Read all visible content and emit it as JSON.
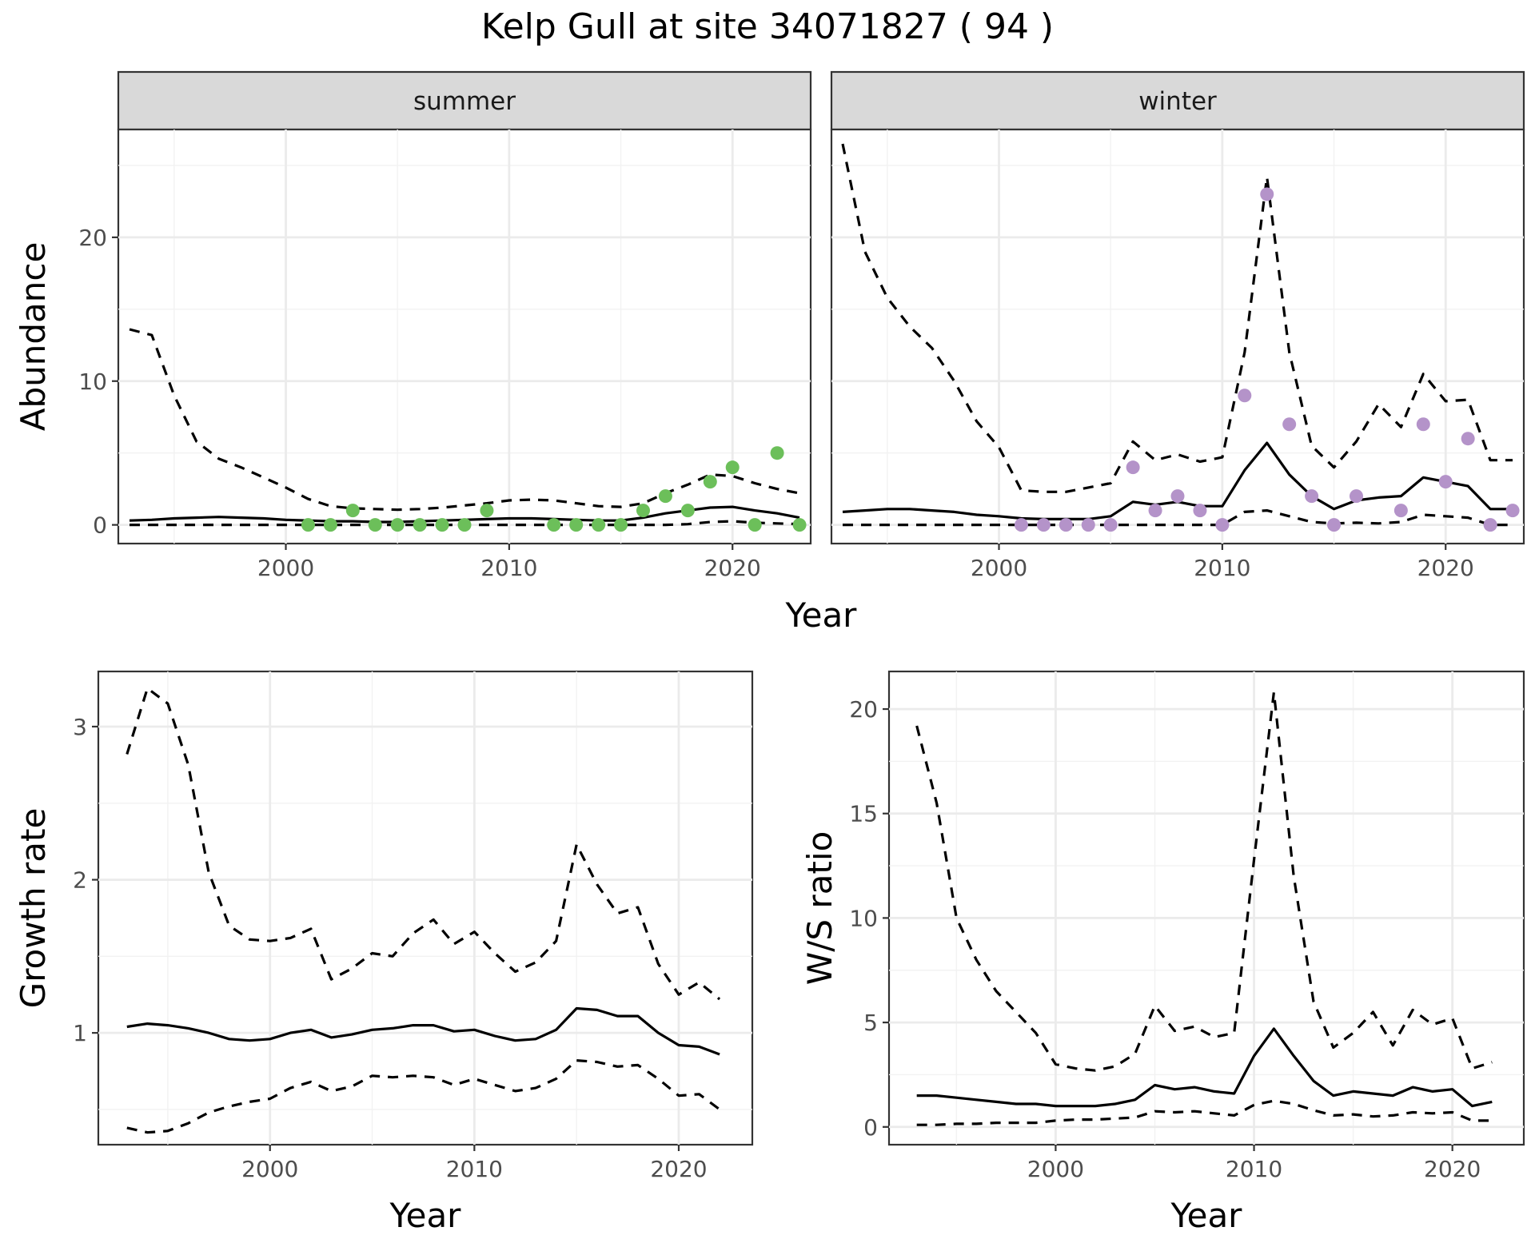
{
  "title": "Kelp Gull at site 34071827 ( 94 )",
  "colors": {
    "summer_points": "#6cbf5a",
    "winter_points": "#b493c9"
  },
  "chart_data": [
    {
      "type": "line",
      "facet": "summer",
      "xlabel": "Year",
      "ylabel": "Abundance",
      "xlim": [
        1992.5,
        2023.5
      ],
      "ylim": [
        -1.3,
        27.5
      ],
      "x_ticks": [
        2000,
        2010,
        2020
      ],
      "y_ticks": [
        0,
        10,
        20
      ],
      "grid": true,
      "lines": {
        "x": [
          1993,
          1994,
          1995,
          1996,
          1997,
          1998,
          1999,
          2000,
          2001,
          2002,
          2003,
          2004,
          2005,
          2006,
          2007,
          2008,
          2009,
          2010,
          2011,
          2012,
          2013,
          2014,
          2015,
          2016,
          2017,
          2018,
          2019,
          2020,
          2021,
          2022,
          2023
        ],
        "mean": [
          0.3,
          0.35,
          0.45,
          0.5,
          0.55,
          0.5,
          0.45,
          0.35,
          0.3,
          0.25,
          0.25,
          0.2,
          0.2,
          0.25,
          0.3,
          0.35,
          0.4,
          0.45,
          0.45,
          0.4,
          0.35,
          0.3,
          0.3,
          0.5,
          0.8,
          1.0,
          1.2,
          1.25,
          1.0,
          0.8,
          0.5
        ],
        "upper": [
          13.6,
          13.2,
          9.0,
          5.8,
          4.6,
          4.0,
          3.3,
          2.6,
          1.8,
          1.3,
          1.15,
          1.1,
          1.05,
          1.1,
          1.2,
          1.35,
          1.5,
          1.7,
          1.75,
          1.7,
          1.5,
          1.3,
          1.25,
          1.5,
          2.2,
          2.8,
          3.5,
          3.4,
          2.9,
          2.5,
          2.2
        ],
        "lower": [
          0.0,
          0.0,
          0.0,
          0.0,
          0.0,
          0.0,
          0.0,
          0.0,
          0.0,
          0.0,
          0.0,
          0.0,
          0.0,
          0.0,
          0.0,
          0.0,
          0.0,
          0.0,
          0.0,
          0.0,
          0.0,
          0.0,
          0.0,
          0.0,
          0.0,
          0.05,
          0.2,
          0.25,
          0.15,
          0.1,
          0.05
        ]
      },
      "points": {
        "x": [
          2001,
          2002,
          2003,
          2004,
          2005,
          2006,
          2007,
          2008,
          2009,
          2012,
          2013,
          2014,
          2015,
          2016,
          2017,
          2018,
          2019,
          2020,
          2021,
          2022,
          2023
        ],
        "y": [
          0,
          0,
          1,
          0,
          0,
          0,
          0,
          0,
          1,
          0,
          0,
          0,
          0,
          1,
          2,
          1,
          3,
          4,
          0,
          5,
          0
        ]
      }
    },
    {
      "type": "line",
      "facet": "winter",
      "xlabel": "Year",
      "ylabel": "Abundance",
      "xlim": [
        1992.5,
        2023.5
      ],
      "ylim": [
        -1.3,
        27.5
      ],
      "x_ticks": [
        2000,
        2010,
        2020
      ],
      "y_ticks": [
        0,
        10,
        20
      ],
      "grid": true,
      "lines": {
        "x": [
          1993,
          1994,
          1995,
          1996,
          1997,
          1998,
          1999,
          2000,
          2001,
          2002,
          2003,
          2004,
          2005,
          2006,
          2007,
          2008,
          2009,
          2010,
          2011,
          2012,
          2013,
          2014,
          2015,
          2016,
          2017,
          2018,
          2019,
          2020,
          2021,
          2022,
          2023
        ],
        "mean": [
          0.9,
          1.0,
          1.1,
          1.1,
          1.0,
          0.9,
          0.7,
          0.6,
          0.45,
          0.4,
          0.4,
          0.4,
          0.6,
          1.6,
          1.4,
          1.6,
          1.3,
          1.3,
          3.8,
          5.7,
          3.5,
          2.0,
          1.1,
          1.7,
          1.9,
          2.0,
          3.3,
          3.0,
          2.7,
          1.1,
          1.1
        ],
        "upper": [
          26.5,
          19.0,
          15.8,
          13.8,
          12.3,
          10.0,
          7.2,
          5.4,
          2.4,
          2.3,
          2.3,
          2.6,
          2.9,
          5.8,
          4.5,
          4.9,
          4.4,
          4.7,
          12.0,
          24.2,
          12.0,
          5.5,
          4.0,
          5.8,
          8.4,
          6.8,
          10.5,
          8.6,
          8.7,
          4.5,
          4.5
        ],
        "lower": [
          0.0,
          0.0,
          0.0,
          0.0,
          0.0,
          0.0,
          0.0,
          0.0,
          0.0,
          0.0,
          0.0,
          0.0,
          0.0,
          0.0,
          0.0,
          0.0,
          0.0,
          0.0,
          0.9,
          1.0,
          0.6,
          0.2,
          0.1,
          0.15,
          0.1,
          0.2,
          0.7,
          0.6,
          0.5,
          0.0,
          0.0
        ]
      },
      "points": {
        "x": [
          2001,
          2002,
          2003,
          2004,
          2005,
          2006,
          2007,
          2008,
          2009,
          2010,
          2011,
          2012,
          2013,
          2014,
          2015,
          2016,
          2018,
          2019,
          2020,
          2021,
          2022,
          2023
        ],
        "y": [
          0,
          0,
          0,
          0,
          0,
          4,
          1,
          2,
          1,
          0,
          9,
          23,
          7,
          2,
          0,
          2,
          1,
          7,
          3,
          6,
          0,
          1
        ]
      }
    },
    {
      "type": "line",
      "xlabel": "Year",
      "ylabel": "Growth rate",
      "xlim": [
        1991.6,
        2023.6
      ],
      "ylim": [
        0.27,
        3.36
      ],
      "x_ticks": [
        2000,
        2010,
        2020
      ],
      "y_ticks": [
        1,
        2,
        3
      ],
      "grid": true,
      "lines": {
        "x": [
          1993,
          1994,
          1995,
          1996,
          1997,
          1998,
          1999,
          2000,
          2001,
          2002,
          2003,
          2004,
          2005,
          2006,
          2007,
          2008,
          2009,
          2010,
          2011,
          2012,
          2013,
          2014,
          2015,
          2016,
          2017,
          2018,
          2019,
          2020,
          2021,
          2022
        ],
        "mean": [
          1.04,
          1.06,
          1.05,
          1.03,
          1.0,
          0.96,
          0.95,
          0.96,
          1.0,
          1.02,
          0.97,
          0.99,
          1.02,
          1.03,
          1.05,
          1.05,
          1.01,
          1.02,
          0.98,
          0.95,
          0.96,
          1.02,
          1.16,
          1.15,
          1.11,
          1.11,
          1.0,
          0.92,
          0.91,
          0.86
        ],
        "upper": [
          2.82,
          3.25,
          3.15,
          2.75,
          2.05,
          1.7,
          1.61,
          1.6,
          1.62,
          1.68,
          1.35,
          1.42,
          1.52,
          1.5,
          1.65,
          1.74,
          1.58,
          1.66,
          1.52,
          1.4,
          1.46,
          1.6,
          2.23,
          1.97,
          1.78,
          1.82,
          1.45,
          1.25,
          1.33,
          1.22
        ],
        "lower": [
          0.38,
          0.35,
          0.36,
          0.41,
          0.48,
          0.52,
          0.55,
          0.57,
          0.64,
          0.68,
          0.62,
          0.65,
          0.72,
          0.71,
          0.72,
          0.71,
          0.66,
          0.7,
          0.66,
          0.62,
          0.64,
          0.7,
          0.82,
          0.81,
          0.78,
          0.79,
          0.7,
          0.59,
          0.6,
          0.5
        ]
      }
    },
    {
      "type": "line",
      "xlabel": "Year",
      "ylabel": "W/S ratio",
      "xlim": [
        1991.6,
        2023.6
      ],
      "ylim": [
        -0.85,
        21.8
      ],
      "x_ticks": [
        2000,
        2010,
        2020
      ],
      "y_ticks": [
        0,
        5,
        10,
        15,
        20
      ],
      "grid": true,
      "lines": {
        "x": [
          1993,
          1994,
          1995,
          1996,
          1997,
          1998,
          1999,
          2000,
          2001,
          2002,
          2003,
          2004,
          2005,
          2006,
          2007,
          2008,
          2009,
          2010,
          2011,
          2012,
          2013,
          2014,
          2015,
          2016,
          2017,
          2018,
          2019,
          2020,
          2021,
          2022
        ],
        "mean": [
          1.5,
          1.5,
          1.4,
          1.3,
          1.2,
          1.1,
          1.1,
          1.0,
          1.0,
          1.0,
          1.1,
          1.3,
          2.0,
          1.8,
          1.9,
          1.7,
          1.6,
          3.4,
          4.7,
          3.4,
          2.2,
          1.5,
          1.7,
          1.6,
          1.5,
          1.9,
          1.7,
          1.8,
          1.0,
          1.2
        ],
        "upper": [
          19.2,
          15.5,
          10.0,
          8.0,
          6.5,
          5.5,
          4.5,
          3.0,
          2.8,
          2.7,
          2.9,
          3.5,
          5.8,
          4.6,
          4.8,
          4.3,
          4.5,
          12.8,
          20.8,
          12.0,
          6.0,
          3.8,
          4.5,
          5.5,
          3.9,
          5.6,
          4.9,
          5.2,
          2.8,
          3.1
        ],
        "lower": [
          0.1,
          0.1,
          0.15,
          0.15,
          0.2,
          0.2,
          0.2,
          0.3,
          0.35,
          0.35,
          0.4,
          0.45,
          0.75,
          0.7,
          0.75,
          0.65,
          0.55,
          1.05,
          1.25,
          1.1,
          0.8,
          0.55,
          0.6,
          0.5,
          0.55,
          0.7,
          0.65,
          0.7,
          0.3,
          0.3
        ]
      }
    }
  ]
}
